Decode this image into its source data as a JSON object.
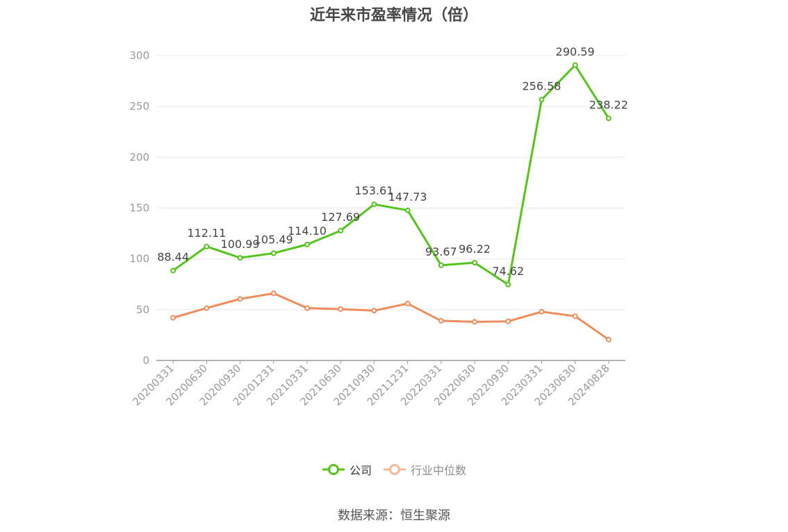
{
  "chart_data": {
    "type": "line",
    "title": "近年来市盈率情况（倍）",
    "categories": [
      "20200331",
      "20200630",
      "20200930",
      "20201231",
      "20210331",
      "20210630",
      "20210930",
      "20211231",
      "20220331",
      "20220630",
      "20220930",
      "20230331",
      "20230630",
      "20240828"
    ],
    "series": [
      {
        "name": "公司",
        "color": "#52c41a",
        "values": [
          88.44,
          112.11,
          100.99,
          105.49,
          114.1,
          127.69,
          153.61,
          147.73,
          93.67,
          96.22,
          74.62,
          256.58,
          290.59,
          238.22
        ],
        "labels": [
          "88.44",
          "112.11",
          "100.99",
          "105.49",
          "114.10",
          "127.69",
          "153.61",
          "147.73",
          "93.67",
          "96.22",
          "74.62",
          "256.58",
          "290.59",
          "238.22"
        ]
      },
      {
        "name": "行业中位数",
        "color": "#f08c5a",
        "values": [
          42,
          51.5,
          60.5,
          66,
          51.5,
          50.5,
          49,
          56,
          39,
          38,
          38.5,
          48,
          43.5,
          20.5
        ]
      }
    ],
    "yticks": [
      "0",
      "50",
      "100",
      "150",
      "200",
      "250",
      "300"
    ],
    "ylim": [
      0,
      300
    ],
    "legend_position": "bottom",
    "grid": true
  },
  "legend": {
    "company": "公司",
    "industry": "行业中位数"
  },
  "source": "数据来源：恒生聚源"
}
